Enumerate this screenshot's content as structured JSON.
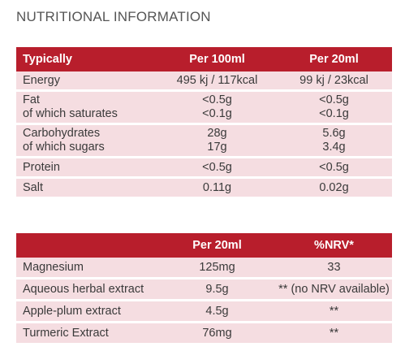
{
  "heading": "NUTRITIONAL INFORMATION",
  "table1": {
    "headers": [
      "Typically",
      "Per 100ml",
      "Per 20ml"
    ],
    "rows": [
      {
        "label": [
          "Energy"
        ],
        "per100": [
          "495 kj / 117kcal"
        ],
        "per20": [
          "99 kj / 23kcal"
        ]
      },
      {
        "label": [
          "Fat",
          "of which saturates"
        ],
        "per100": [
          "<0.5g",
          "<0.1g"
        ],
        "per20": [
          "<0.5g",
          "<0.1g"
        ]
      },
      {
        "label": [
          "Carbohydrates",
          "of which sugars"
        ],
        "per100": [
          "28g",
          "17g"
        ],
        "per20": [
          "5.6g",
          "3.4g"
        ]
      },
      {
        "label": [
          "Protein"
        ],
        "per100": [
          "<0.5g"
        ],
        "per20": [
          "<0.5g"
        ]
      },
      {
        "label": [
          "Salt"
        ],
        "per100": [
          "0.11g"
        ],
        "per20": [
          "0.02g"
        ]
      }
    ]
  },
  "table2": {
    "headers": [
      "",
      "Per 20ml",
      "%NRV*"
    ],
    "rows": [
      {
        "label": "Magnesium",
        "per20": "125mg",
        "nrv": "33"
      },
      {
        "label": "Aqueous herbal extract",
        "per20": "9.5g",
        "nrv": "** (no NRV available)"
      },
      {
        "label": "Apple-plum extract",
        "per20": "4.5g",
        "nrv": "**"
      },
      {
        "label": "Turmeric Extract",
        "per20": "76mg",
        "nrv": "**"
      }
    ]
  },
  "colors": {
    "header_bg": "#b81e2c",
    "row_bg": "#f5dde1",
    "heading_text": "#555555"
  }
}
